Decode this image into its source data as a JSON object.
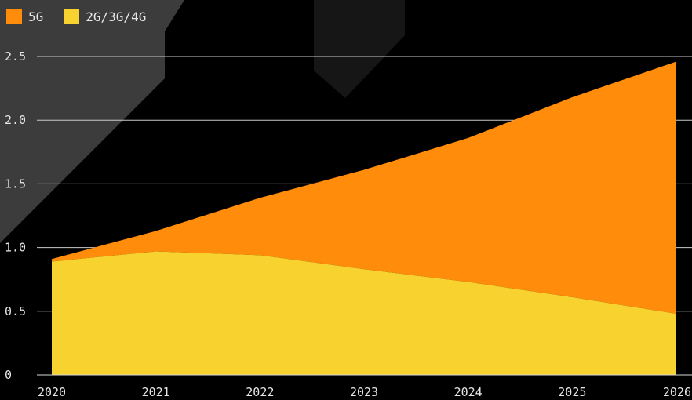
{
  "legend": {
    "items": [
      {
        "label": "5G",
        "color": "#ff8c0a"
      },
      {
        "label": "2G/3G/4G",
        "color": "#f8d22e"
      }
    ]
  },
  "chart_data": {
    "type": "area",
    "stacked": true,
    "title": "",
    "xlabel": "",
    "ylabel": "",
    "x": [
      2020,
      2021,
      2022,
      2023,
      2024,
      2025,
      2026
    ],
    "xlim": [
      2020,
      2026
    ],
    "ylim": [
      0,
      2.5
    ],
    "y_ticks": [
      "0",
      "0.5",
      "1.0",
      "1.5",
      "2.0",
      "2.5"
    ],
    "x_ticks": [
      "2020",
      "2021",
      "2022",
      "2023",
      "2024",
      "2025",
      "2026"
    ],
    "grid": true,
    "legend_position": "top-left",
    "series": [
      {
        "name": "2G/3G/4G",
        "color": "#f8d22e",
        "values": [
          0.89,
          0.97,
          0.94,
          0.83,
          0.73,
          0.61,
          0.48
        ]
      },
      {
        "name": "5G",
        "color": "#ff8c0a",
        "values": [
          0.02,
          0.16,
          0.45,
          0.78,
          1.13,
          1.57,
          1.98
        ]
      }
    ]
  }
}
